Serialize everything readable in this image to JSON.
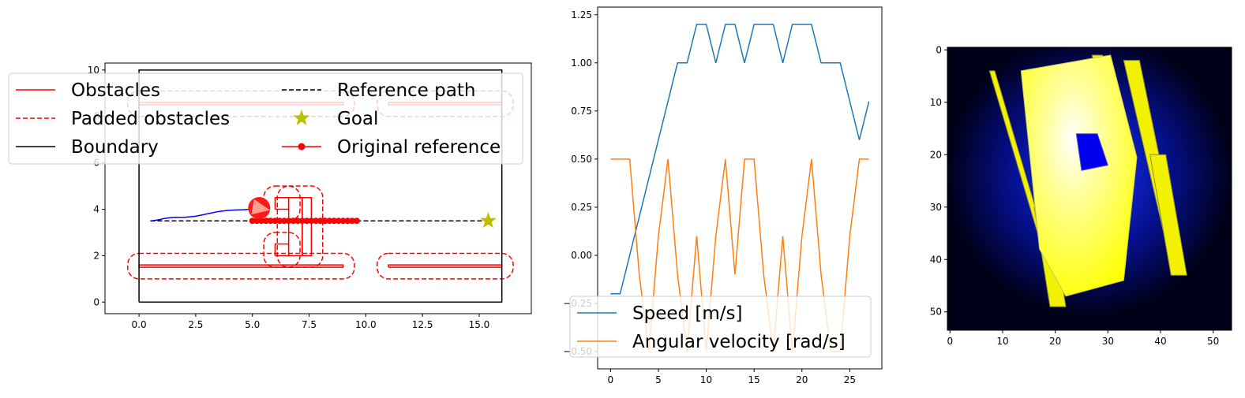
{
  "chart_data": [
    {
      "type": "line",
      "panel": "map",
      "xlim": [
        -1.5,
        17.3
      ],
      "ylim": [
        -0.5,
        10.3
      ],
      "xticks": [
        "0.0",
        "2.5",
        "5.0",
        "7.5",
        "10.0",
        "12.5",
        "15.0"
      ],
      "xtick_values": [
        0,
        2.5,
        5,
        7.5,
        10,
        12.5,
        15
      ],
      "yticks": [
        "0",
        "2",
        "4",
        "6",
        "8",
        "10"
      ],
      "ytick_values": [
        0,
        2,
        4,
        6,
        8,
        10
      ],
      "grid": false,
      "legend_position": "upper center (overlapping)",
      "legend": [
        "Obstacles",
        "Padded obstacles",
        "Boundary",
        "Reference path",
        "Goal",
        "Original reference"
      ],
      "boundary": [
        [
          0,
          0
        ],
        [
          16,
          0
        ],
        [
          16,
          10
        ],
        [
          0,
          10
        ],
        [
          0,
          0
        ]
      ],
      "obstacles": [
        [
          [
            0,
            1.5
          ],
          [
            9,
            1.5
          ],
          [
            9,
            1.6
          ],
          [
            0,
            1.6
          ],
          [
            0,
            1.5
          ]
        ],
        [
          [
            11,
            1.5
          ],
          [
            16,
            1.5
          ],
          [
            16,
            1.6
          ],
          [
            11,
            1.6
          ],
          [
            11,
            1.5
          ]
        ],
        [
          [
            0,
            8.5
          ],
          [
            9,
            8.5
          ],
          [
            9,
            8.6
          ],
          [
            0,
            8.6
          ],
          [
            0,
            8.5
          ]
        ],
        [
          [
            11,
            8.5
          ],
          [
            16,
            8.5
          ],
          [
            16,
            8.6
          ],
          [
            11,
            8.6
          ],
          [
            11,
            8.5
          ]
        ],
        [
          [
            6,
            4
          ],
          [
            6.6,
            4
          ],
          [
            6.6,
            4.5
          ],
          [
            6,
            4.5
          ],
          [
            6,
            4
          ]
        ],
        [
          [
            6,
            2
          ],
          [
            6.6,
            2
          ],
          [
            6.6,
            2.5
          ],
          [
            6,
            2.5
          ],
          [
            6,
            2
          ]
        ],
        [
          [
            6.6,
            2
          ],
          [
            7.2,
            2
          ],
          [
            7.2,
            4.5
          ],
          [
            6.6,
            4.5
          ],
          [
            6.6,
            2
          ]
        ],
        [
          [
            7.2,
            2
          ],
          [
            7.6,
            2
          ],
          [
            7.6,
            4.5
          ],
          [
            7.2,
            4.5
          ],
          [
            7.2,
            2
          ]
        ]
      ],
      "padded_obstacles": [
        {
          "x0": -0.5,
          "x1": 9.5,
          "y0": 1.0,
          "y1": 2.1
        },
        {
          "x0": 10.5,
          "x1": 16.5,
          "y0": 1.0,
          "y1": 2.1
        },
        {
          "x0": -0.5,
          "x1": 9.5,
          "y0": 8.0,
          "y1": 9.1
        },
        {
          "x0": 10.5,
          "x1": 16.5,
          "y0": 8.0,
          "y1": 9.1
        },
        {
          "x0": 5.5,
          "x1": 7.1,
          "y0": 3.5,
          "y1": 5.0
        },
        {
          "x0": 5.5,
          "x1": 7.1,
          "y0": 1.5,
          "y1": 3.0
        },
        {
          "x0": 6.1,
          "x1": 8.1,
          "y0": 1.5,
          "y1": 5.0
        }
      ],
      "reference_path": {
        "x": [
          0.5,
          15.4
        ],
        "y": [
          3.5,
          3.5
        ]
      },
      "goal": {
        "x": 15.4,
        "y": 3.5
      },
      "original_reference": {
        "x": [
          5.0,
          5.2,
          5.4,
          5.6,
          5.8,
          6.0,
          6.2,
          6.4,
          6.6,
          6.8,
          7.0,
          7.2,
          7.4,
          7.6,
          7.8,
          8.0,
          8.2,
          8.4,
          8.6,
          8.8,
          9.0,
          9.2,
          9.4,
          9.6
        ],
        "y": [
          3.5,
          3.5,
          3.5,
          3.5,
          3.5,
          3.5,
          3.5,
          3.5,
          3.5,
          3.5,
          3.5,
          3.5,
          3.5,
          3.5,
          3.5,
          3.5,
          3.5,
          3.5,
          3.5,
          3.5,
          3.5,
          3.5,
          3.5,
          3.5
        ]
      },
      "trajectory": {
        "x": [
          0.55,
          0.9,
          1.1,
          1.5,
          2.0,
          2.5,
          3.0,
          3.5,
          3.9,
          4.3,
          4.6,
          4.9,
          5.1
        ],
        "y": [
          3.5,
          3.55,
          3.6,
          3.65,
          3.65,
          3.7,
          3.8,
          3.9,
          3.95,
          3.97,
          3.98,
          4.0,
          4.05
        ]
      },
      "robot": {
        "x": 5.3,
        "y": 4.05,
        "heading_deg": -10
      },
      "colors": {
        "obstacle": "#ff0000",
        "reference": "#000000",
        "goal": "#bfbf00",
        "trajectory": "#0000ff",
        "boundary": "#000000"
      }
    },
    {
      "type": "line",
      "panel": "velocities",
      "xlim": [
        -1.35,
        28.35
      ],
      "ylim": [
        -0.59,
        1.29
      ],
      "xticks": [
        "0",
        "5",
        "10",
        "15",
        "20",
        "25"
      ],
      "xtick_values": [
        0,
        5,
        10,
        15,
        20,
        25
      ],
      "yticks": [
        "1.25",
        "1.00",
        "0.75",
        "0.50",
        "0.25",
        "0.00",
        "−0.25",
        "−0.50"
      ],
      "ytick_values": [
        1.25,
        1.0,
        0.75,
        0.5,
        0.25,
        0.0,
        -0.25,
        -0.5
      ],
      "grid": false,
      "legend_position": "lower left",
      "x": [
        0,
        1,
        2,
        3,
        4,
        5,
        6,
        7,
        8,
        9,
        10,
        11,
        12,
        13,
        14,
        15,
        16,
        17,
        18,
        19,
        20,
        21,
        22,
        23,
        24,
        25,
        26,
        27
      ],
      "series": [
        {
          "name": "Speed [m/s]",
          "color": "#1f77b4",
          "values": [
            -0.2,
            -0.2,
            0,
            0.2,
            0.4,
            0.6,
            0.8,
            1.0,
            1.0,
            1.2,
            1.2,
            1.0,
            1.2,
            1.2,
            1.0,
            1.2,
            1.2,
            1.2,
            1.0,
            1.2,
            1.2,
            1.2,
            1.0,
            1.0,
            1.0,
            0.8,
            0.6,
            0.8
          ]
        },
        {
          "name": "Angular velocity [rad/s]",
          "color": "#ff7f0e",
          "values": [
            0.5,
            0.5,
            0.5,
            -0.1,
            -0.5,
            0.1,
            0.5,
            -0.1,
            -0.5,
            0.1,
            -0.5,
            0.1,
            0.5,
            -0.1,
            0.5,
            0.5,
            -0.1,
            -0.5,
            0.1,
            -0.5,
            0.1,
            0.5,
            -0.1,
            -0.5,
            -0.5,
            0.1,
            0.5,
            0.5
          ]
        }
      ]
    },
    {
      "type": "heatmap",
      "panel": "occupancy",
      "xlim": [
        -0.5,
        53.5
      ],
      "ylim": [
        53.5,
        -0.5
      ],
      "xticks": [
        "0",
        "10",
        "20",
        "30",
        "40",
        "50"
      ],
      "xtick_values": [
        0,
        10,
        20,
        30,
        40,
        50
      ],
      "yticks": [
        "0",
        "10",
        "20",
        "30",
        "40",
        "50"
      ],
      "ytick_values": [
        0,
        10,
        20,
        30,
        40,
        50
      ],
      "grid": false,
      "colormap": "black-blue-white-yellow",
      "free_region": [
        [
          13.5,
          4
        ],
        [
          30.5,
          1
        ],
        [
          35.5,
          20.5
        ],
        [
          33,
          44
        ],
        [
          22,
          47
        ],
        [
          17,
          38
        ]
      ],
      "strips": [
        [
          [
            7.5,
            4
          ],
          [
            8.5,
            4
          ],
          [
            21.5,
            48
          ],
          [
            20.5,
            48
          ]
        ],
        [
          [
            27,
            1
          ],
          [
            29,
            1
          ],
          [
            34,
            22
          ],
          [
            32,
            22
          ]
        ],
        [
          [
            33,
            2
          ],
          [
            36,
            2
          ],
          [
            44,
            41
          ],
          [
            42,
            41
          ]
        ],
        [
          [
            38,
            20
          ],
          [
            41,
            20
          ],
          [
            45,
            43
          ],
          [
            42,
            43
          ]
        ],
        [
          [
            16,
            30
          ],
          [
            19,
            30
          ],
          [
            22,
            49
          ],
          [
            19,
            49
          ]
        ]
      ],
      "dark_blobs": [
        [
          [
            24,
            16
          ],
          [
            28,
            16
          ],
          [
            30,
            22
          ],
          [
            25,
            23
          ]
        ]
      ]
    }
  ]
}
